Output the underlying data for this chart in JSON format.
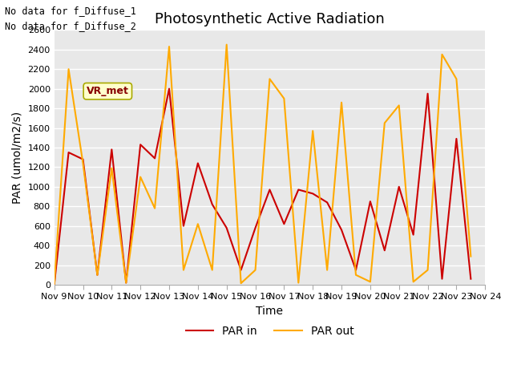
{
  "title": "Photosynthetic Active Radiation",
  "xlabel": "Time",
  "ylabel": "PAR (umol/m2/s)",
  "annotation_lines": [
    "No data for f_Diffuse_1",
    "No data for f_Diffuse_2"
  ],
  "legend_label": "VR_met",
  "legend_entries": [
    "PAR in",
    "PAR out"
  ],
  "x_labels": [
    "Nov 9",
    "Nov 10",
    "Nov 11",
    "Nov 12",
    "Nov 13",
    "Nov 14",
    "Nov 15",
    "Nov 16",
    "Nov 17",
    "Nov 18",
    "Nov 19",
    "Nov 20",
    "Nov 21",
    "Nov 22",
    "Nov 23",
    "Nov 24"
  ],
  "par_in_x": [
    9,
    9.5,
    10,
    10.5,
    11,
    11.5,
    12,
    12.5,
    13,
    13.5,
    14,
    14.5,
    15,
    15.5,
    16,
    16.5,
    17,
    17.5,
    18,
    18.5,
    19,
    19.5,
    20,
    20.5,
    21,
    21.5,
    22,
    22.5,
    23,
    23.5
  ],
  "par_in_y": [
    0,
    1350,
    1280,
    100,
    1380,
    20,
    1430,
    1290,
    2000,
    600,
    1240,
    820,
    580,
    150,
    580,
    970,
    620,
    970,
    930,
    840,
    560,
    150,
    850,
    350,
    1000,
    510,
    1950,
    60,
    1490,
    60
  ],
  "par_out_x": [
    9,
    9.5,
    10,
    10.5,
    11,
    11.5,
    12,
    12.5,
    13,
    13.5,
    14,
    14.5,
    15,
    15.5,
    16,
    16.5,
    17,
    17.5,
    18,
    18.5,
    19,
    19.5,
    20,
    20.5,
    21,
    21.5,
    22,
    22.5,
    23,
    23.5
  ],
  "par_out_y": [
    0,
    2200,
    1240,
    100,
    1190,
    20,
    1100,
    780,
    2430,
    150,
    620,
    150,
    2450,
    15,
    150,
    2100,
    1900,
    20,
    1570,
    150,
    1860,
    100,
    30,
    1650,
    1830,
    30,
    150,
    2350,
    2100,
    290
  ],
  "par_in_color": "#cc0000",
  "par_out_color": "#ffaa00",
  "figure_bg_color": "#ffffff",
  "plot_bg_color": "#e8e8e8",
  "ylim": [
    0,
    2600
  ],
  "xlim": [
    9,
    24
  ],
  "yticks": [
    0,
    200,
    400,
    600,
    800,
    1000,
    1200,
    1400,
    1600,
    1800,
    2000,
    2200,
    2400,
    2600
  ],
  "xtick_positions": [
    9,
    10,
    11,
    12,
    13,
    14,
    15,
    16,
    17,
    18,
    19,
    20,
    21,
    22,
    23,
    24
  ],
  "grid_color": "#ffffff",
  "vr_met_box_facecolor": "#ffffcc",
  "vr_met_box_edgecolor": "#aaaa00",
  "vr_met_text_color": "#880000",
  "title_fontsize": 13,
  "axis_label_fontsize": 10,
  "tick_fontsize": 8,
  "linewidth": 1.5
}
